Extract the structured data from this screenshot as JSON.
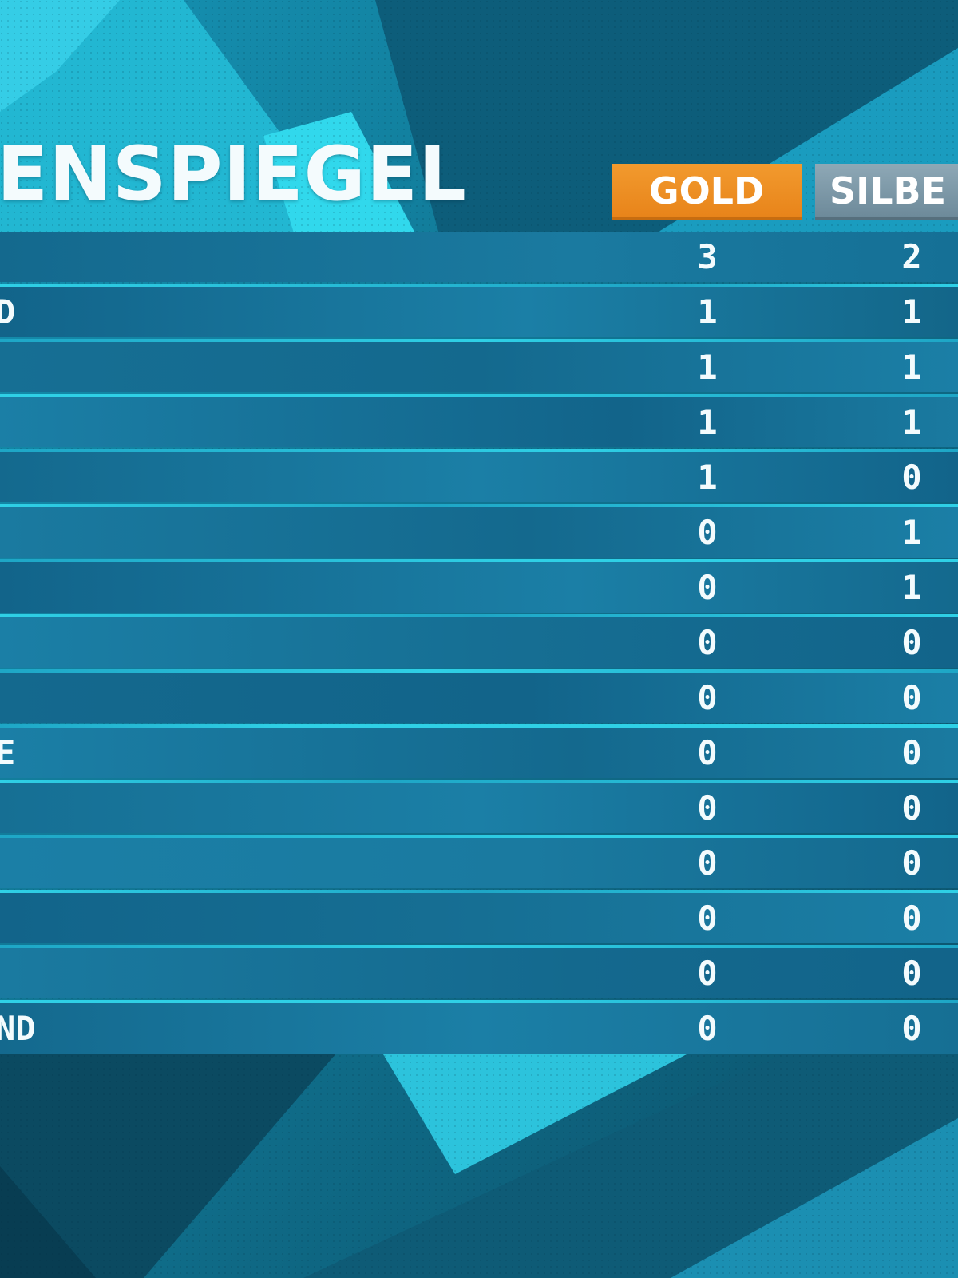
{
  "title": "ENSPIEGEL",
  "columns": {
    "gold": "GOLD",
    "silver": "SILBE"
  },
  "rows": [
    {
      "name": "",
      "gold": "3",
      "silver": "2"
    },
    {
      "name": "D",
      "gold": "1",
      "silver": "1"
    },
    {
      "name": "",
      "gold": "1",
      "silver": "1"
    },
    {
      "name": "",
      "gold": "1",
      "silver": "1"
    },
    {
      "name": "",
      "gold": "1",
      "silver": "0"
    },
    {
      "name": "",
      "gold": "0",
      "silver": "1"
    },
    {
      "name": "",
      "gold": "0",
      "silver": "1"
    },
    {
      "name": "",
      "gold": "0",
      "silver": "0"
    },
    {
      "name": "",
      "gold": "0",
      "silver": "0"
    },
    {
      "name": "E",
      "gold": "0",
      "silver": "0"
    },
    {
      "name": "",
      "gold": "0",
      "silver": "0"
    },
    {
      "name": "",
      "gold": "0",
      "silver": "0"
    },
    {
      "name": "",
      "gold": "0",
      "silver": "0"
    },
    {
      "name": "",
      "gold": "0",
      "silver": "0"
    },
    {
      "name": "ND",
      "gold": "0",
      "silver": "0"
    }
  ],
  "colors": {
    "gold_header": "#e8841a",
    "silver_header": "#6d8a9a",
    "row_dark": "#12648a",
    "row_light": "#1b7fa6",
    "highlight": "#2fd0e6",
    "text": "#f3fbfd"
  }
}
